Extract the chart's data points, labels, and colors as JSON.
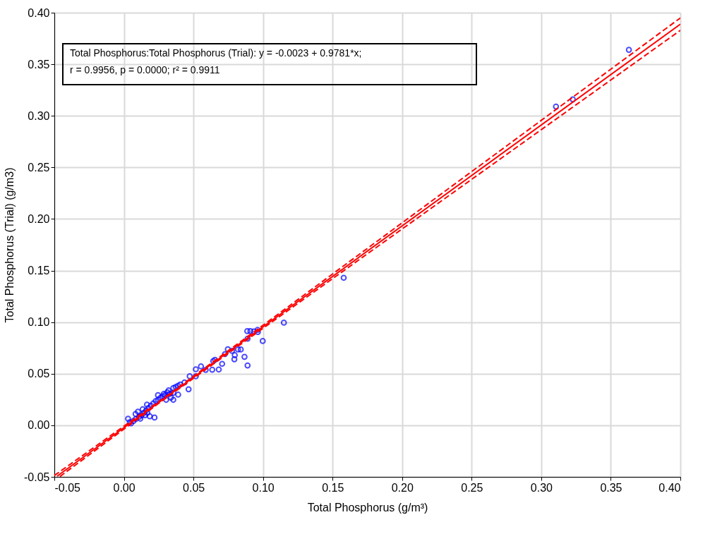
{
  "chart_data": {
    "type": "scatter",
    "xlabel": "Total Phosphorus (g/m³)",
    "ylabel": "Total Phosphorus (Trial) (g/m3)",
    "annotations": [
      "Total Phosphorus:Total Phosphorus (Trial):    y = -0.0023 + 0.9781*x;",
      "r = 0.9956, p = 0.0000; r² = 0.9911"
    ],
    "xlim": [
      -0.05,
      0.4
    ],
    "ylim": [
      -0.05,
      0.4
    ],
    "xticks": [
      {
        "value": -0.05,
        "label": "-0.05"
      },
      {
        "value": 0,
        "label": "0.00"
      },
      {
        "value": 0.05,
        "label": "0.05"
      },
      {
        "value": 0.1,
        "label": "0.10"
      },
      {
        "value": 0.15,
        "label": "0.15"
      },
      {
        "value": 0.2,
        "label": "0.20"
      },
      {
        "value": 0.25,
        "label": "0.25"
      },
      {
        "value": 0.3,
        "label": "0.30"
      },
      {
        "value": 0.35,
        "label": "0.35"
      },
      {
        "value": 0.4,
        "label": "0.40"
      }
    ],
    "yticks": [
      {
        "value": -0.05,
        "label": "-0.05"
      },
      {
        "value": 0,
        "label": "0.00"
      },
      {
        "value": 0.05,
        "label": "0.05"
      },
      {
        "value": 0.1,
        "label": "0.10"
      },
      {
        "value": 0.15,
        "label": "0.15"
      },
      {
        "value": 0.2,
        "label": "0.20"
      },
      {
        "value": 0.25,
        "label": "0.25"
      },
      {
        "value": 0.3,
        "label": "0.30"
      },
      {
        "value": 0.35,
        "label": "0.35"
      },
      {
        "value": 0.4,
        "label": "0.40"
      }
    ],
    "grid": true,
    "series": [
      {
        "type": "scatter",
        "marker": "circle",
        "color": "#0000ff",
        "x": [
          0.363,
          0.3106,
          0.3227,
          0.158,
          0.115,
          0.0998,
          0.0887,
          0.0909,
          0.0934,
          0.0961,
          0.0963,
          0.0889,
          0.0889,
          0.0867,
          0.084,
          0.082,
          0.0797,
          0.0794,
          0.0777,
          0.0747,
          0.0726,
          0.0706,
          0.0682,
          0.0655,
          0.0642,
          0.0635,
          0.0588,
          0.0554,
          0.0517,
          0.0517,
          0.0473,
          0.0465,
          0.0436,
          0.0405,
          0.0389,
          0.0372,
          0.0355,
          0.039,
          0.0355,
          0.0329,
          0.0312,
          0.0296,
          0.0279,
          0.0262,
          0.0245,
          0.0228,
          0.0211,
          0.0194,
          0.0177,
          0.016,
          0.0144,
          0.0127,
          0.011,
          0.0084,
          0.0068,
          0.0042,
          0.003,
          0.0051,
          0.0169,
          0.0152,
          0.0118,
          0.0186,
          0.0135,
          0.0084,
          0.0101,
          0.0166,
          0.0245,
          0.0287,
          0.0338,
          0.0304,
          0.0355,
          0.0321,
          0.022
        ],
        "values": [
          0.364,
          0.309,
          0.316,
          0.143,
          0.0995,
          0.0817,
          0.0913,
          0.0913,
          0.0909,
          0.0925,
          0.0904,
          0.084,
          0.058,
          0.0664,
          0.0735,
          0.0735,
          0.068,
          0.064,
          0.0721,
          0.0737,
          0.069,
          0.0596,
          0.0541,
          0.0635,
          0.0623,
          0.0539,
          0.0537,
          0.0571,
          0.0543,
          0.0475,
          0.0475,
          0.0349,
          0.0416,
          0.0395,
          0.0384,
          0.0372,
          0.0361,
          0.0297,
          0.0315,
          0.0304,
          0.032,
          0.0292,
          0.0281,
          0.0265,
          0.0247,
          0.0235,
          0.0212,
          0.019,
          0.0167,
          0.0144,
          0.0121,
          0.0098,
          0.0082,
          0.0059,
          0.0041,
          0.003,
          0.0064,
          0.0018,
          0.0121,
          0.0098,
          0.0064,
          0.0087,
          0.0155,
          0.011,
          0.0132,
          0.0201,
          0.0292,
          0.0304,
          0.0269,
          0.0247,
          0.0247,
          0.0338,
          0.0075
        ]
      },
      {
        "type": "line",
        "marker": "none",
        "color": "#ff0000",
        "line_style": "solid",
        "x": [
          -0.048,
          0.4
        ],
        "values": [
          -0.0493,
          0.3889
        ]
      },
      {
        "type": "line",
        "marker": "none",
        "color": "#ff0000",
        "line_style": "dashed",
        "x": [
          -0.05,
          0.03,
          0.1,
          0.2,
          0.3,
          0.4
        ],
        "values": [
          -0.0487,
          0.0278,
          0.097,
          0.1963,
          0.2956,
          0.3949
        ]
      },
      {
        "type": "line",
        "marker": "none",
        "color": "#ff0000",
        "line_style": "dashed",
        "x": [
          -0.046,
          0.03,
          0.1,
          0.2,
          0.3,
          0.4
        ],
        "values": [
          -0.0497,
          0.0262,
          0.094,
          0.1903,
          0.2866,
          0.3829
        ]
      }
    ]
  }
}
